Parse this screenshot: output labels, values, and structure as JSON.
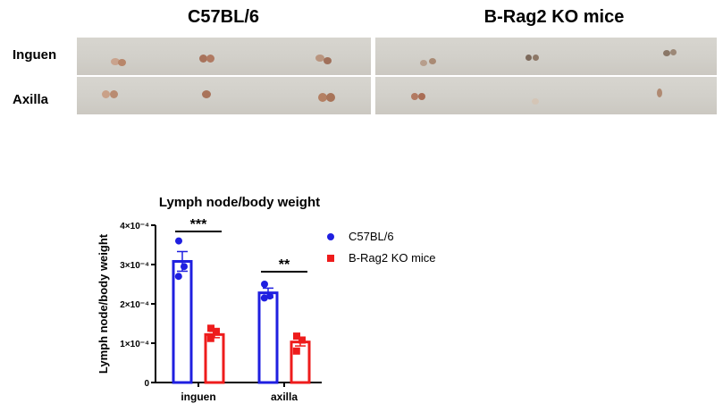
{
  "figure": {
    "column_headers": [
      "C57BL/6",
      "B-Rag2 KO mice"
    ],
    "row_labels": [
      "Inguen",
      "Axilla"
    ]
  },
  "chart_data": {
    "type": "bar",
    "title": "Lymph node/body weight",
    "ylabel": "Lymph node/body weight",
    "xlabel": "",
    "categories": [
      "inguen",
      "axilla"
    ],
    "ylim": [
      0,
      0.0004
    ],
    "yticks": [
      0,
      0.0001,
      0.0002,
      0.0003,
      0.0004
    ],
    "ytick_labels": [
      "0",
      "1×10⁻⁴",
      "2×10⁻⁴",
      "3×10⁻⁴",
      "4×10⁻⁴"
    ],
    "legend_position": "right",
    "series": [
      {
        "name": "C57BL/6",
        "color": "#1f1fe0",
        "marker": "circle",
        "values": [
          0.000308,
          0.000228
        ],
        "errors": [
          2.5e-05,
          1.2e-05
        ],
        "points": [
          [
            0.00036,
            0.000295,
            0.00027
          ],
          [
            0.00025,
            0.00022,
            0.000215
          ]
        ]
      },
      {
        "name": "B-Rag2 KO mice",
        "color": "#ee1c1c",
        "marker": "square",
        "values": [
          0.000122,
          0.000103
        ],
        "errors": [
          8e-06,
          1e-05
        ],
        "points": [
          [
            0.000138,
            0.00013,
            0.000112
          ],
          [
            0.000118,
            0.000108,
            8e-05
          ]
        ]
      }
    ],
    "annotations": [
      "***",
      "**"
    ]
  }
}
